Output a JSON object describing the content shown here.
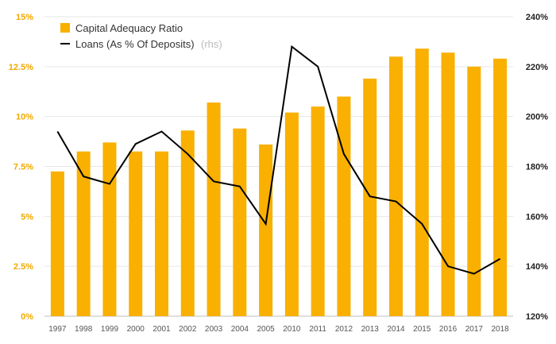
{
  "chart_data": {
    "type": "bar",
    "categories": [
      "1997",
      "1998",
      "1999",
      "2000",
      "2001",
      "2002",
      "2003",
      "2004",
      "2005",
      "2010",
      "2011",
      "2012",
      "2013",
      "2014",
      "2015",
      "2016",
      "2017",
      "2018"
    ],
    "series": [
      {
        "name": "Capital Adequacy Ratio",
        "type": "bar",
        "axis": "left",
        "color": "#f9b000",
        "values": [
          7.25,
          8.25,
          8.7,
          8.25,
          8.25,
          9.3,
          10.7,
          9.4,
          8.6,
          10.2,
          10.5,
          11.0,
          11.9,
          13.0,
          13.4,
          13.2,
          12.5,
          12.9
        ]
      },
      {
        "name": "Loans (As % Of Deposits)",
        "name_suffix": "(rhs)",
        "type": "line",
        "axis": "right",
        "color": "#000000",
        "values": [
          194,
          176,
          173,
          189,
          194,
          185,
          174,
          172,
          157,
          228,
          220,
          185,
          168,
          166,
          157,
          140,
          137,
          143
        ]
      }
    ],
    "left_axis": {
      "min": 0,
      "max": 15,
      "ticks": [
        0,
        2.5,
        5,
        7.5,
        10,
        12.5,
        15
      ],
      "tick_labels": [
        "0%",
        "2.5%",
        "5%",
        "7.5%",
        "10%",
        "12.5%",
        "15%"
      ],
      "color": "#f2a900"
    },
    "right_axis": {
      "min": 120,
      "max": 240,
      "ticks": [
        120,
        140,
        160,
        180,
        200,
        220,
        240
      ],
      "tick_labels": [
        "120%",
        "140%",
        "160%",
        "180%",
        "200%",
        "220%",
        "240%"
      ],
      "color": "#222222"
    },
    "grid": true,
    "legend": "top-left",
    "title": "",
    "xlabel": "",
    "ylabel": ""
  }
}
